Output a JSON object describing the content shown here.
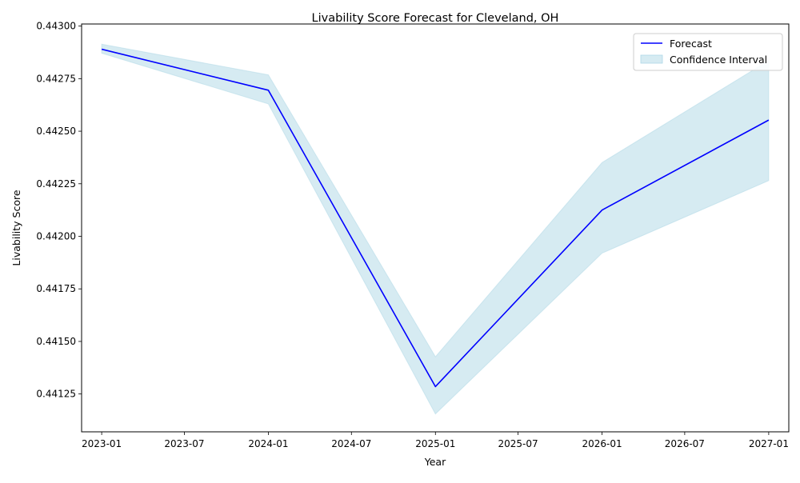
{
  "chart_data": {
    "type": "line",
    "title": "Livability Score Forecast for Cleveland, OH",
    "xlabel": "Year",
    "ylabel": "Livability Score",
    "x": [
      "2023-01",
      "2024-01",
      "2025-01",
      "2026-01",
      "2027-01"
    ],
    "series": [
      {
        "name": "Forecast",
        "values": [
          0.44289,
          0.442695,
          0.441285,
          0.442125,
          0.442553
        ],
        "color": "#0000ff"
      }
    ],
    "confidence_interval": {
      "name": "Confidence Interval",
      "lower": [
        0.442871,
        0.44263,
        0.441155,
        0.44192,
        0.442265
      ],
      "upper": [
        0.442914,
        0.442768,
        0.441427,
        0.442351,
        0.442836
      ],
      "color": "#add8e6"
    },
    "x_ticks": [
      "2023-01",
      "2023-07",
      "2024-01",
      "2024-07",
      "2025-01",
      "2025-07",
      "2026-01",
      "2026-07",
      "2027-01"
    ],
    "y_ticks": [
      "0.44125",
      "0.44150",
      "0.44175",
      "0.44200",
      "0.44225",
      "0.44250",
      "0.44275",
      "0.44300"
    ],
    "xlim": [
      "2022-11-18",
      "2027-02-14"
    ],
    "ylim": [
      0.44107,
      0.44301
    ],
    "legend_position": "top-right",
    "grid": false
  }
}
